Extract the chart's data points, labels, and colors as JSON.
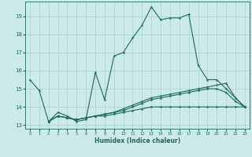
{
  "xlabel": "Humidex (Indice chaleur)",
  "bg_color": "#cdeaea",
  "grid_color": "#b0d4d4",
  "line_color": "#1a6b5a",
  "xlim": [
    -0.5,
    23.5
  ],
  "ylim": [
    12.8,
    19.8
  ],
  "yticks": [
    13,
    14,
    15,
    16,
    17,
    18,
    19
  ],
  "xticks": [
    0,
    1,
    2,
    3,
    4,
    5,
    6,
    7,
    8,
    9,
    10,
    11,
    12,
    13,
    14,
    15,
    16,
    17,
    18,
    19,
    20,
    21,
    22,
    23
  ],
  "series1": {
    "x": [
      0,
      1,
      2,
      3,
      4,
      5,
      6,
      7,
      8,
      9,
      10,
      11,
      12,
      13,
      14,
      15,
      16,
      17,
      18,
      19,
      20,
      21,
      22,
      23
    ],
    "y": [
      15.5,
      14.9,
      13.2,
      13.7,
      13.5,
      13.2,
      13.3,
      15.9,
      14.4,
      16.8,
      17.0,
      17.8,
      18.5,
      19.5,
      18.8,
      18.9,
      18.9,
      19.1,
      16.3,
      15.5,
      15.5,
      15.0,
      14.5,
      14.0
    ]
  },
  "series2": {
    "x": [
      2,
      3,
      4,
      5,
      6,
      7,
      8,
      9,
      10,
      11,
      12,
      13,
      14,
      15,
      16,
      17,
      18,
      19,
      20,
      21,
      22,
      23
    ],
    "y": [
      13.2,
      13.5,
      13.4,
      13.3,
      13.4,
      13.5,
      13.6,
      13.7,
      13.9,
      14.1,
      14.3,
      14.5,
      14.6,
      14.7,
      14.8,
      14.9,
      15.0,
      15.1,
      15.2,
      15.3,
      14.5,
      14.0
    ]
  },
  "series3": {
    "x": [
      2,
      3,
      4,
      5,
      6,
      7,
      8,
      9,
      10,
      11,
      12,
      13,
      14,
      15,
      16,
      17,
      18,
      19,
      20,
      21,
      22,
      23
    ],
    "y": [
      13.2,
      13.5,
      13.4,
      13.3,
      13.4,
      13.5,
      13.6,
      13.7,
      13.8,
      14.0,
      14.2,
      14.4,
      14.5,
      14.6,
      14.7,
      14.8,
      14.9,
      15.0,
      15.0,
      14.8,
      14.3,
      14.0
    ]
  },
  "series4": {
    "x": [
      2,
      3,
      4,
      5,
      6,
      7,
      8,
      9,
      10,
      11,
      12,
      13,
      14,
      15,
      16,
      17,
      18,
      19,
      20,
      21,
      22,
      23
    ],
    "y": [
      13.2,
      13.5,
      13.4,
      13.3,
      13.4,
      13.5,
      13.5,
      13.6,
      13.7,
      13.8,
      13.9,
      14.0,
      14.0,
      14.0,
      14.0,
      14.0,
      14.0,
      14.0,
      14.0,
      14.0,
      14.0,
      14.0
    ]
  }
}
